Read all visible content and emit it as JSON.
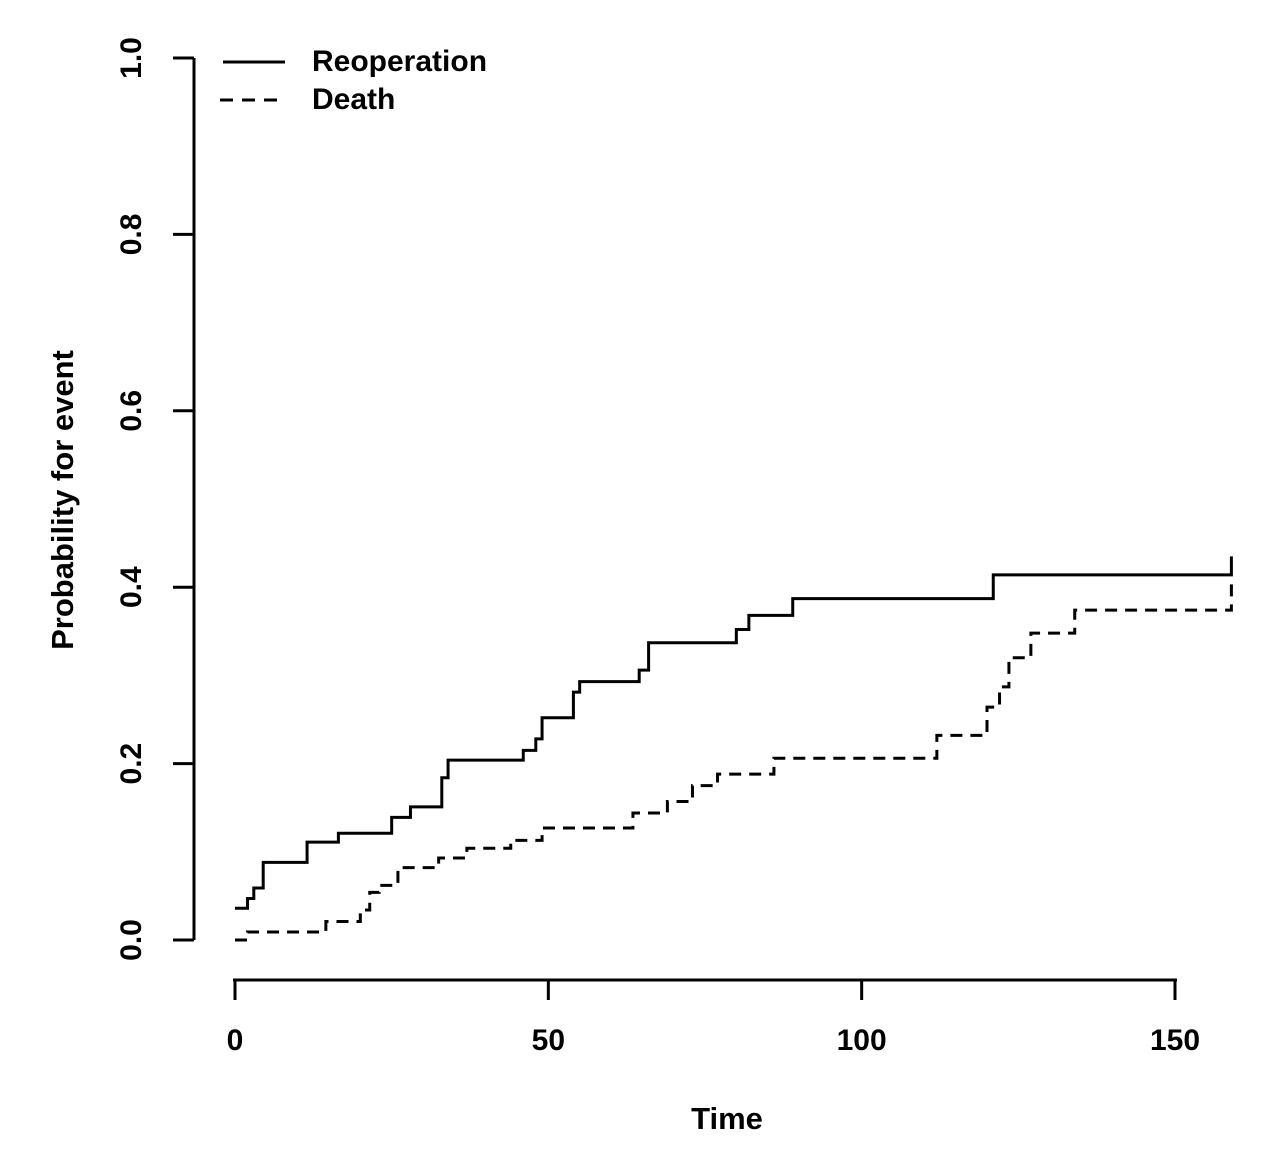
{
  "figure": {
    "background_color": "#ffffff",
    "foreground_color": "#000000"
  },
  "chart_data": {
    "type": "line",
    "subtype": "step",
    "title": "",
    "xlabel": "Time",
    "ylabel": "Probability for event",
    "xlim": [
      0,
      150
    ],
    "ylim": [
      0.0,
      1.0
    ],
    "x_ticks": [
      {
        "value": 0,
        "label": "0"
      },
      {
        "value": 50,
        "label": "50"
      },
      {
        "value": 100,
        "label": "100"
      },
      {
        "value": 150,
        "label": "150"
      }
    ],
    "y_ticks": [
      {
        "value": 0.0,
        "label": "0.0"
      },
      {
        "value": 0.2,
        "label": "0.2"
      },
      {
        "value": 0.4,
        "label": "0.4"
      },
      {
        "value": 0.6,
        "label": "0.6"
      },
      {
        "value": 0.8,
        "label": "0.8"
      },
      {
        "value": 1.0,
        "label": "1.0"
      }
    ],
    "grid": false,
    "legend_position": "top-left",
    "series": [
      {
        "name": "Reoperation",
        "line_style": "solid",
        "color": "#000000",
        "points": [
          [
            0,
            0.036
          ],
          [
            2,
            0.047
          ],
          [
            3,
            0.059
          ],
          [
            4.5,
            0.088
          ],
          [
            11.5,
            0.111
          ],
          [
            16.5,
            0.121
          ],
          [
            25,
            0.139
          ],
          [
            28,
            0.151
          ],
          [
            33,
            0.184
          ],
          [
            34,
            0.204
          ],
          [
            46,
            0.215
          ],
          [
            48,
            0.228
          ],
          [
            49,
            0.252
          ],
          [
            54,
            0.281
          ],
          [
            55,
            0.293
          ],
          [
            64.5,
            0.306
          ],
          [
            66,
            0.337
          ],
          [
            80,
            0.352
          ],
          [
            82,
            0.368
          ],
          [
            89,
            0.387
          ],
          [
            121,
            0.414
          ],
          [
            159,
            0.435
          ]
        ]
      },
      {
        "name": "Death",
        "line_style": "dashed",
        "color": "#000000",
        "points": [
          [
            0,
            0.0
          ],
          [
            2,
            0.009
          ],
          [
            14.5,
            0.021
          ],
          [
            20,
            0.034
          ],
          [
            21.5,
            0.054
          ],
          [
            23,
            0.062
          ],
          [
            26,
            0.082
          ],
          [
            32.5,
            0.093
          ],
          [
            37,
            0.104
          ],
          [
            44,
            0.113
          ],
          [
            49,
            0.127
          ],
          [
            63.5,
            0.144
          ],
          [
            69,
            0.157
          ],
          [
            73,
            0.175
          ],
          [
            77,
            0.188
          ],
          [
            86,
            0.206
          ],
          [
            112,
            0.232
          ],
          [
            120,
            0.264
          ],
          [
            122,
            0.287
          ],
          [
            123.5,
            0.32
          ],
          [
            127,
            0.348
          ],
          [
            134,
            0.374
          ],
          [
            159,
            0.404
          ]
        ]
      }
    ]
  }
}
